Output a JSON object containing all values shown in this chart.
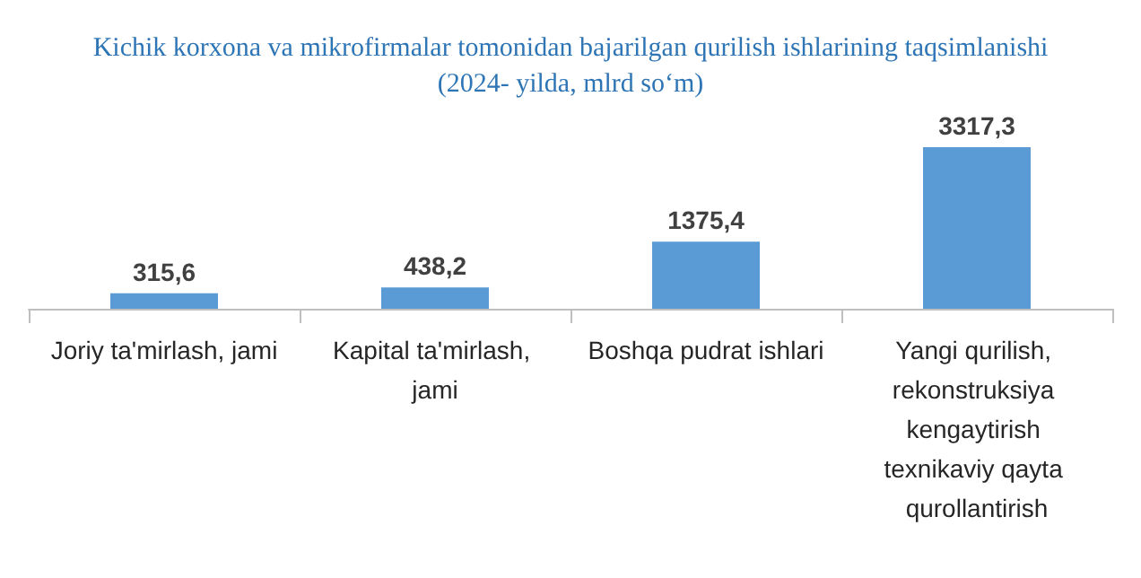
{
  "chart_data": {
    "type": "bar",
    "title": "Kichik korxona va mikrofirmalar tomonidan bajarilgan qurilish ishlarining taqsimlanishi\n(2024- yilda, mlrd so‘m)",
    "categories": [
      "Joriy ta'mirlash, jami",
      "Kapital ta'mirlash, jami",
      "Boshqa pudrat ishlari",
      "Yangi qurilish, rekonstruksiya kengaytirish texnikaviy qayta qurollantirish"
    ],
    "values": [
      315.6,
      438.2,
      1375.4,
      3317.3
    ],
    "value_labels": [
      "315,6",
      "438,2",
      "1375,4",
      "3317,3"
    ],
    "color": "#5b9bd5",
    "tick_labels": "x"
  }
}
